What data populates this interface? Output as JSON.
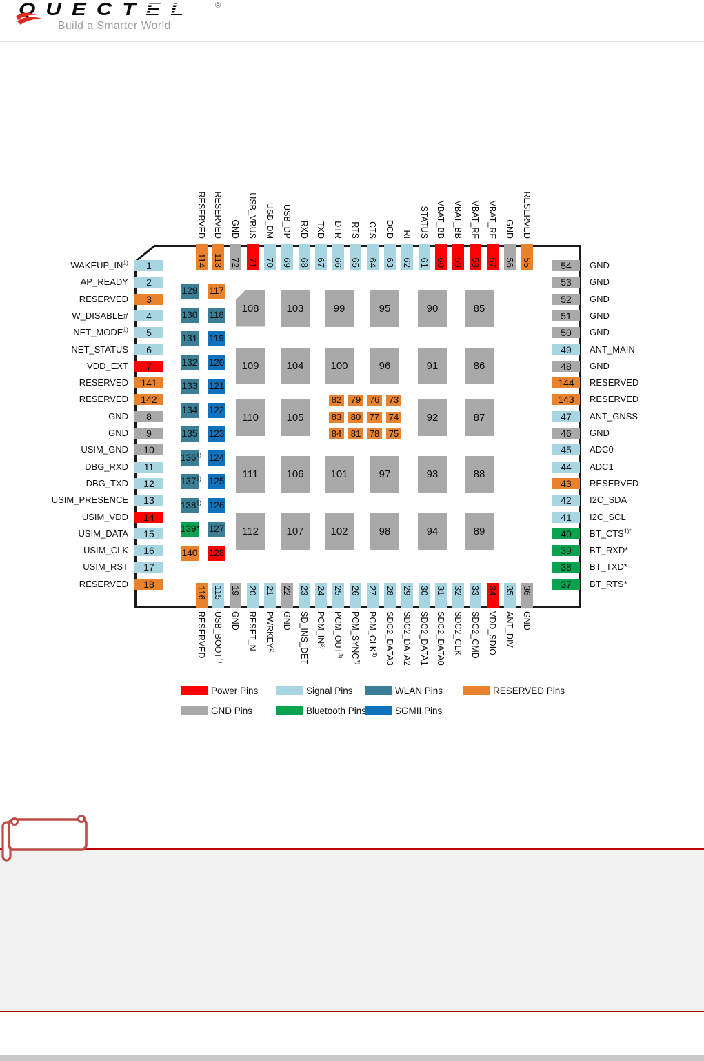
{
  "page": {
    "logo": {
      "brand_head": "QUECT",
      "brand_tail": "EL",
      "registered": "®",
      "tagline": "Build a Smarter World"
    }
  },
  "colors": {
    "power": "#FE0000",
    "signal": "#A8D5E2",
    "wlan": "#3B7F96",
    "reserved": "#E8822D",
    "gnd": "#A9A9A9",
    "bt": "#0AA24E",
    "sgmii": "#1072BC",
    "outline": "#1A1A1A",
    "divider_red": "#C00000",
    "notes_tab": "#BE4B48"
  },
  "diagram": {
    "left_pins": [
      {
        "num": "1",
        "label": "WAKEUP_IN",
        "sup": "1)",
        "type": "signal"
      },
      {
        "num": "2",
        "label": "AP_READY",
        "type": "signal"
      },
      {
        "num": "3",
        "label": "RESERVED",
        "type": "reserved"
      },
      {
        "num": "4",
        "label": "W_DISABLE#",
        "type": "signal"
      },
      {
        "num": "5",
        "label": "NET_MODE",
        "sup": "1)",
        "type": "signal"
      },
      {
        "num": "6",
        "label": "NET_STATUS",
        "type": "signal"
      },
      {
        "num": "7",
        "label": "VDD_EXT",
        "type": "power"
      },
      {
        "num": "141",
        "label": "RESERVED",
        "type": "reserved"
      },
      {
        "num": "142",
        "label": "RESERVED",
        "type": "reserved"
      },
      {
        "num": "8",
        "label": "GND",
        "type": "gnd"
      },
      {
        "num": "9",
        "label": "GND",
        "type": "gnd"
      },
      {
        "num": "10",
        "label": "USIM_GND",
        "type": "gnd"
      },
      {
        "num": "11",
        "label": "DBG_RXD",
        "type": "signal"
      },
      {
        "num": "12",
        "label": "DBG_TXD",
        "type": "signal"
      },
      {
        "num": "13",
        "label": "USIM_PRESENCE",
        "type": "signal"
      },
      {
        "num": "14",
        "label": "USIM_VDD",
        "type": "power"
      },
      {
        "num": "15",
        "label": "USIM_DATA",
        "type": "signal"
      },
      {
        "num": "16",
        "label": "USIM_CLK",
        "type": "signal"
      },
      {
        "num": "17",
        "label": "USIM_RST",
        "type": "signal"
      },
      {
        "num": "18",
        "label": "RESERVED",
        "type": "reserved"
      }
    ],
    "right_pins": [
      {
        "num": "54",
        "label": "GND",
        "type": "gnd"
      },
      {
        "num": "53",
        "label": "GND",
        "type": "gnd"
      },
      {
        "num": "52",
        "label": "GND",
        "type": "gnd"
      },
      {
        "num": "51",
        "label": "GND",
        "type": "gnd"
      },
      {
        "num": "50",
        "label": "GND",
        "type": "gnd"
      },
      {
        "num": "49",
        "label": "ANT_MAIN",
        "type": "signal"
      },
      {
        "num": "48",
        "label": "GND",
        "type": "gnd"
      },
      {
        "num": "144",
        "label": "RESERVED",
        "type": "reserved"
      },
      {
        "num": "143",
        "label": "RESERVED",
        "type": "reserved"
      },
      {
        "num": "47",
        "label": "ANT_GNSS",
        "type": "signal"
      },
      {
        "num": "46",
        "label": "GND",
        "type": "gnd"
      },
      {
        "num": "45",
        "label": "ADC0",
        "type": "signal"
      },
      {
        "num": "44",
        "label": "ADC1",
        "type": "signal"
      },
      {
        "num": "43",
        "label": "RESERVED",
        "type": "reserved"
      },
      {
        "num": "42",
        "label": "I2C_SDA",
        "type": "signal"
      },
      {
        "num": "41",
        "label": "I2C_SCL",
        "type": "signal"
      },
      {
        "num": "40",
        "label": "BT_CTS",
        "sup": "1)*",
        "type": "bt"
      },
      {
        "num": "39",
        "label": "BT_RXD*",
        "type": "bt"
      },
      {
        "num": "38",
        "label": "BT_TXD*",
        "type": "bt"
      },
      {
        "num": "37",
        "label": "BT_RTS*",
        "type": "bt"
      }
    ],
    "top_pins": [
      {
        "num": "114",
        "label": "RESERVED",
        "type": "reserved"
      },
      {
        "num": "113",
        "label": "RESERVED",
        "type": "reserved"
      },
      {
        "num": "72",
        "label": "GND",
        "type": "gnd"
      },
      {
        "num": "71",
        "label": "USB_VBUS",
        "type": "power"
      },
      {
        "num": "70",
        "label": "USB_DM",
        "type": "signal"
      },
      {
        "num": "69",
        "label": "USB_DP",
        "type": "signal"
      },
      {
        "num": "68",
        "label": "RXD",
        "type": "signal"
      },
      {
        "num": "67",
        "label": "TXD",
        "type": "signal"
      },
      {
        "num": "66",
        "label": "DTR",
        "type": "signal"
      },
      {
        "num": "65",
        "label": "RTS",
        "type": "signal"
      },
      {
        "num": "64",
        "label": "CTS",
        "type": "signal"
      },
      {
        "num": "63",
        "label": "DCD",
        "type": "signal"
      },
      {
        "num": "62",
        "label": "RI",
        "type": "signal"
      },
      {
        "num": "61",
        "label": "STATUS",
        "type": "signal"
      },
      {
        "num": "60",
        "label": "VBAT_BB",
        "type": "power"
      },
      {
        "num": "59",
        "label": "VBAT_BB",
        "type": "power"
      },
      {
        "num": "58",
        "label": "VBAT_RF",
        "type": "power"
      },
      {
        "num": "57",
        "label": "VBAT_RF",
        "type": "power"
      },
      {
        "num": "56",
        "label": "GND",
        "type": "gnd"
      },
      {
        "num": "55",
        "label": "RESERVED",
        "type": "reserved"
      }
    ],
    "bottom_pins": [
      {
        "num": "116",
        "label": "RESERVED",
        "type": "reserved"
      },
      {
        "num": "115",
        "label": "USB_BOOT",
        "sup": "1)",
        "type": "signal"
      },
      {
        "num": "19",
        "label": "GND",
        "type": "gnd"
      },
      {
        "num": "20",
        "label": "RESET_N",
        "type": "signal"
      },
      {
        "num": "21",
        "label": "PWRKEY",
        "sup": "2)",
        "type": "signal"
      },
      {
        "num": "22",
        "label": "GND",
        "type": "gnd"
      },
      {
        "num": "23",
        "label": "SD_INS_DET",
        "type": "signal"
      },
      {
        "num": "24",
        "label": "PCM_IN",
        "sup": "3)",
        "type": "signal"
      },
      {
        "num": "25",
        "label": "PCM_OUT",
        "sup": "3)",
        "type": "signal"
      },
      {
        "num": "26",
        "label": "PCM_SYNC",
        "sup": "3)",
        "type": "signal"
      },
      {
        "num": "27",
        "label": "PCM_CLK",
        "sup": "3)",
        "type": "signal"
      },
      {
        "num": "28",
        "label": "SDC2_DATA3",
        "type": "signal"
      },
      {
        "num": "29",
        "label": "SDC2_DATA2",
        "type": "signal"
      },
      {
        "num": "30",
        "label": "SDC2_DATA1",
        "type": "signal"
      },
      {
        "num": "31",
        "label": "SDC2_DATA0",
        "type": "signal"
      },
      {
        "num": "32",
        "label": "SDC2_CLK",
        "type": "signal"
      },
      {
        "num": "33",
        "label": "SDC2_CMD",
        "type": "signal"
      },
      {
        "num": "34",
        "label": "VDD_SDIO",
        "type": "power"
      },
      {
        "num": "35",
        "label": "ANT_DIV",
        "type": "signal"
      },
      {
        "num": "36",
        "label": "GND",
        "type": "gnd"
      }
    ],
    "inner_left": {
      "col1": [
        {
          "num": "129",
          "type": "wlan"
        },
        {
          "num": "130",
          "type": "wlan"
        },
        {
          "num": "131",
          "type": "wlan"
        },
        {
          "num": "132",
          "type": "wlan"
        },
        {
          "num": "133",
          "type": "wlan"
        },
        {
          "num": "134",
          "type": "wlan"
        },
        {
          "num": "135",
          "type": "wlan"
        },
        {
          "num": "136",
          "sup": "1)",
          "type": "wlan"
        },
        {
          "num": "137",
          "sup": "1)",
          "type": "wlan"
        },
        {
          "num": "138",
          "sup": "1)",
          "type": "wlan"
        },
        {
          "num": "139*",
          "type": "bt"
        },
        {
          "num": "140",
          "type": "reserved"
        }
      ],
      "col2": [
        {
          "num": "117",
          "type": "reserved"
        },
        {
          "num": "118",
          "type": "wlan"
        },
        {
          "num": "119",
          "type": "sgmii"
        },
        {
          "num": "120",
          "type": "sgmii"
        },
        {
          "num": "121",
          "type": "sgmii"
        },
        {
          "num": "122",
          "type": "sgmii"
        },
        {
          "num": "123",
          "type": "sgmii"
        },
        {
          "num": "124",
          "type": "sgmii"
        },
        {
          "num": "125",
          "type": "sgmii"
        },
        {
          "num": "126",
          "type": "sgmii"
        },
        {
          "num": "127",
          "type": "wlan"
        },
        {
          "num": "128",
          "type": "power"
        }
      ]
    },
    "center_pads": [
      [
        "108",
        "103",
        "99",
        "95",
        "90",
        "85"
      ],
      [
        "109",
        "104",
        "100",
        "96",
        "91",
        "86"
      ],
      [
        "110",
        "105",
        null,
        null,
        "92",
        "87"
      ],
      [
        "111",
        "106",
        "101",
        "97",
        "93",
        "88"
      ],
      [
        "112",
        "107",
        "102",
        "98",
        "94",
        "89"
      ]
    ],
    "center_orange": [
      [
        "82",
        "79",
        "76",
        "73"
      ],
      [
        "83",
        "80",
        "77",
        "74"
      ],
      [
        "84",
        "81",
        "78",
        "75"
      ]
    ]
  },
  "legend": {
    "row1": [
      {
        "label": "Power Pins",
        "type": "power"
      },
      {
        "label": "Signal Pins",
        "type": "signal"
      },
      {
        "label": "WLAN Pins",
        "type": "wlan"
      },
      {
        "label": "RESERVED Pins",
        "type": "reserved"
      }
    ],
    "row2": [
      {
        "label": "GND Pins",
        "type": "gnd"
      },
      {
        "label": "Bluetooth Pins",
        "type": "bt"
      },
      {
        "label": "SGMII Pins",
        "type": "sgmii"
      }
    ]
  }
}
